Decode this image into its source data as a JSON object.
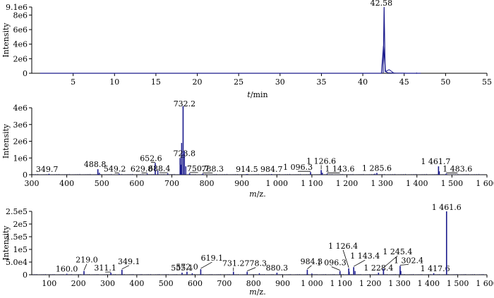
{
  "chart_data": [
    {
      "type": "line",
      "ylabel": "Intensity",
      "xlabel_parts": {
        "italic": "t",
        "rest": "/min"
      },
      "xlim": [
        0,
        55
      ],
      "ylim": [
        0,
        9100000.0
      ],
      "x_ticks": [
        5,
        10,
        15,
        20,
        25,
        30,
        35,
        40,
        45,
        50,
        55
      ],
      "x_tick_labels": [
        "5",
        "10",
        "15",
        "20",
        "25",
        "30",
        "35",
        "40",
        "45",
        "50",
        "55"
      ],
      "y_ticks": [
        0,
        2000000.0,
        4000000.0,
        6000000.0,
        8000000.0,
        9100000.0
      ],
      "y_tick_labels": [
        "0",
        "2e6",
        "4e6",
        "6e6",
        "8e6",
        "9.1e6"
      ],
      "color": "#1a1a8c",
      "peaks": [
        {
          "x": 42.58,
          "y": 9100000.0,
          "label": "42.58"
        }
      ]
    },
    {
      "type": "bar",
      "ylabel": "Intensity",
      "xlabel_parts": {
        "italic": "m",
        "rest": "/z."
      },
      "xlim": [
        300,
        1600
      ],
      "ylim": [
        0,
        4000000.0
      ],
      "x_ticks": [
        300,
        400,
        500,
        600,
        700,
        800,
        900,
        1000,
        1100,
        1200,
        1300,
        1400,
        1500,
        1600
      ],
      "x_tick_labels": [
        "300",
        "400",
        "500",
        "600",
        "700",
        "800",
        "900",
        "1 000",
        "1 100",
        "1 200",
        "1 300",
        "1 400",
        "1 500",
        "1 600"
      ],
      "y_ticks": [
        0,
        1000000.0,
        2000000.0,
        3000000.0,
        4000000.0
      ],
      "y_tick_labels": [
        "0",
        "1e6",
        "2e6",
        "3e6",
        "4e6"
      ],
      "color": "#1a1a8c",
      "peaks": [
        {
          "x": 349.7,
          "y": 50000,
          "label": "349.7"
        },
        {
          "x": 488.8,
          "y": 330000,
          "label": "488.8"
        },
        {
          "x": 549.2,
          "y": 60000,
          "label": "549.2"
        },
        {
          "x": 629.8,
          "y": 70000,
          "label": "629.8"
        },
        {
          "x": 652.6,
          "y": 700000,
          "label": "652.6"
        },
        {
          "x": 688.4,
          "y": 80000,
          "label": "688.4"
        },
        {
          "x": 723.8,
          "y": 1000000,
          "label": "723.8"
        },
        {
          "x": 732.2,
          "y": 4100000,
          "label": "732.2"
        },
        {
          "x": 750.7,
          "y": 90000,
          "label": "750.7"
        },
        {
          "x": 788.3,
          "y": 60000,
          "label": "788.3"
        },
        {
          "x": 914.5,
          "y": 40000,
          "label": "914.5"
        },
        {
          "x": 984.7,
          "y": 40000,
          "label": "984.7"
        },
        {
          "x": 1096.3,
          "y": 160000,
          "label": "1 096.3"
        },
        {
          "x": 1126.6,
          "y": 280000,
          "label": "1 126.6"
        },
        {
          "x": 1143.6,
          "y": 60000,
          "label": "1 143.6"
        },
        {
          "x": 1285.6,
          "y": 110000,
          "label": "1 285.6"
        },
        {
          "x": 1461.7,
          "y": 500000,
          "label": "1 461.7"
        },
        {
          "x": 1483.6,
          "y": 60000,
          "label": "1 483.6"
        }
      ],
      "minor_bars": [
        {
          "x": 728.0,
          "y": 1900000
        },
        {
          "x": 736.0,
          "y": 1400000
        },
        {
          "x": 740.0,
          "y": 500000
        },
        {
          "x": 726.0,
          "y": 600000
        },
        {
          "x": 660.0,
          "y": 250000
        },
        {
          "x": 1464.0,
          "y": 200000
        },
        {
          "x": 1130.0,
          "y": 120000
        },
        {
          "x": 1280.0,
          "y": 60000
        },
        {
          "x": 493.0,
          "y": 120000
        }
      ]
    },
    {
      "type": "bar",
      "ylabel": "Intensity",
      "xlabel_parts": {
        "italic": "m",
        "rest": "/z."
      },
      "xlim": [
        40,
        1600
      ],
      "ylim": [
        0,
        250000.0
      ],
      "x_ticks": [
        100,
        200,
        300,
        400,
        500,
        600,
        700,
        800,
        900,
        1000,
        1100,
        1200,
        1300,
        1400,
        1500,
        1600
      ],
      "x_tick_labels": [
        "100",
        "200",
        "300",
        "400",
        "500",
        "600",
        "700",
        "800",
        "900",
        "1 000",
        "1 100",
        "1 200",
        "1 300",
        "1 400",
        "1 500",
        "1 600"
      ],
      "y_ticks": [
        0,
        50000,
        100000,
        150000,
        200000,
        250000
      ],
      "y_tick_labels": [
        "0",
        "5.0e4",
        "1e5",
        "1.5e5",
        "2e5",
        "2.5e5"
      ],
      "color": "#1a1a8c",
      "peaks": [
        {
          "x": 160.0,
          "y": 4000,
          "label": "160.0"
        },
        {
          "x": 219.0,
          "y": 15000,
          "label": "219.0"
        },
        {
          "x": 311.1,
          "y": 8000,
          "label": "311.1"
        },
        {
          "x": 349.1,
          "y": 20000,
          "label": "349.1"
        },
        {
          "x": 555.1,
          "y": 8000,
          "label": "555.1"
        },
        {
          "x": 572.0,
          "y": 12000,
          "label": "572.0"
        },
        {
          "x": 619.1,
          "y": 22000,
          "label": "619.1"
        },
        {
          "x": 731.2,
          "y": 12000,
          "label": "731.2"
        },
        {
          "x": 778.3,
          "y": 12000,
          "label": "778.3"
        },
        {
          "x": 880.3,
          "y": 8000,
          "label": "880.3"
        },
        {
          "x": 984.3,
          "y": 20000,
          "label": "984.3"
        },
        {
          "x": 1096.3,
          "y": 15000,
          "label": "1 096.3"
        },
        {
          "x": 1126.4,
          "y": 25000,
          "label": "1 126.4"
        },
        {
          "x": 1143.4,
          "y": 30000,
          "label": "1 143.4"
        },
        {
          "x": 1228.4,
          "y": 8000,
          "label": "1 228.4"
        },
        {
          "x": 1245.4,
          "y": 25000,
          "label": "1 245.4"
        },
        {
          "x": 1302.4,
          "y": 35000,
          "label": "1 302.4"
        },
        {
          "x": 1417.6,
          "y": 6000,
          "label": "1 417.6"
        },
        {
          "x": 1461.6,
          "y": 250000,
          "label": "1 461.6"
        }
      ],
      "minor_bars": [
        {
          "x": 1128.0,
          "y": 12000
        },
        {
          "x": 1148.0,
          "y": 15000
        },
        {
          "x": 1305.0,
          "y": 15000
        },
        {
          "x": 590.0,
          "y": 6000
        },
        {
          "x": 820.0,
          "y": 6000
        },
        {
          "x": 1000.0,
          "y": 5000
        }
      ]
    }
  ]
}
